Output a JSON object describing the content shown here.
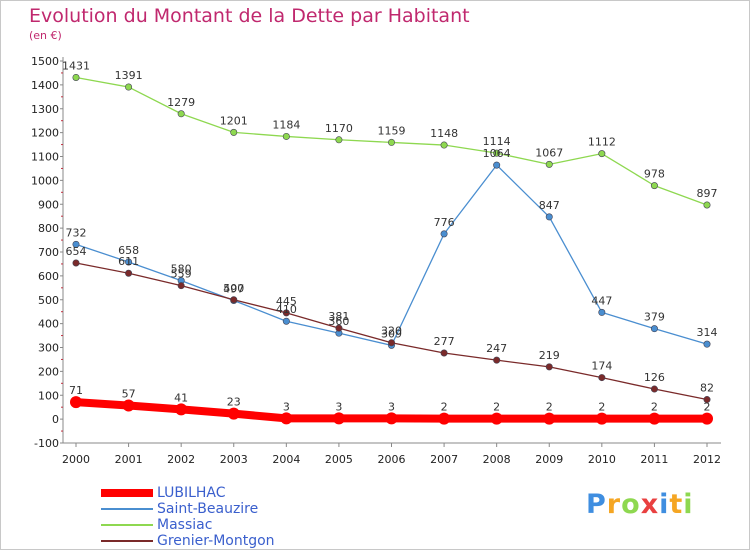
{
  "chart_data": {
    "type": "line",
    "title": "Evolution du Montant de la Dette par Habitant",
    "subtitle": "(en €)",
    "xlabel": "",
    "ylabel": "",
    "categories": [
      "2000",
      "2001",
      "2002",
      "2003",
      "2004",
      "2005",
      "2006",
      "2007",
      "2008",
      "2009",
      "2010",
      "2011",
      "2012"
    ],
    "ylim": [
      -100,
      1500
    ],
    "yticks": [
      -100,
      0,
      100,
      200,
      300,
      400,
      500,
      600,
      700,
      800,
      900,
      1000,
      1100,
      1200,
      1300,
      1400,
      1500
    ],
    "grid": false,
    "legend_position": "bottom-left",
    "series": [
      {
        "name": "LUBILHAC",
        "color": "#ff0000",
        "values": [
          71,
          57,
          41,
          23,
          3,
          3,
          3,
          2,
          2,
          2,
          2,
          2,
          2
        ]
      },
      {
        "name": "Saint-Beauzire",
        "color": "#4a8ed0",
        "values": [
          732,
          658,
          580,
          497,
          410,
          360,
          309,
          776,
          1064,
          847,
          447,
          379,
          314
        ]
      },
      {
        "name": "Massiac",
        "color": "#8ed850",
        "values": [
          1431,
          1391,
          1279,
          1201,
          1184,
          1170,
          1159,
          1148,
          1114,
          1067,
          1112,
          978,
          897
        ]
      },
      {
        "name": "Grenier-Montgon",
        "color": "#7a2a2a",
        "values": [
          654,
          611,
          559,
          500,
          445,
          381,
          320,
          277,
          247,
          219,
          174,
          126,
          82
        ]
      }
    ]
  },
  "brand": {
    "letters": [
      "P",
      "r",
      "o",
      "x",
      "i",
      "t",
      "i"
    ],
    "colors": [
      "#3f8ee0",
      "#f5a623",
      "#8ed850",
      "#e94040",
      "#3f8ee0",
      "#f5a623",
      "#8ed850"
    ]
  }
}
